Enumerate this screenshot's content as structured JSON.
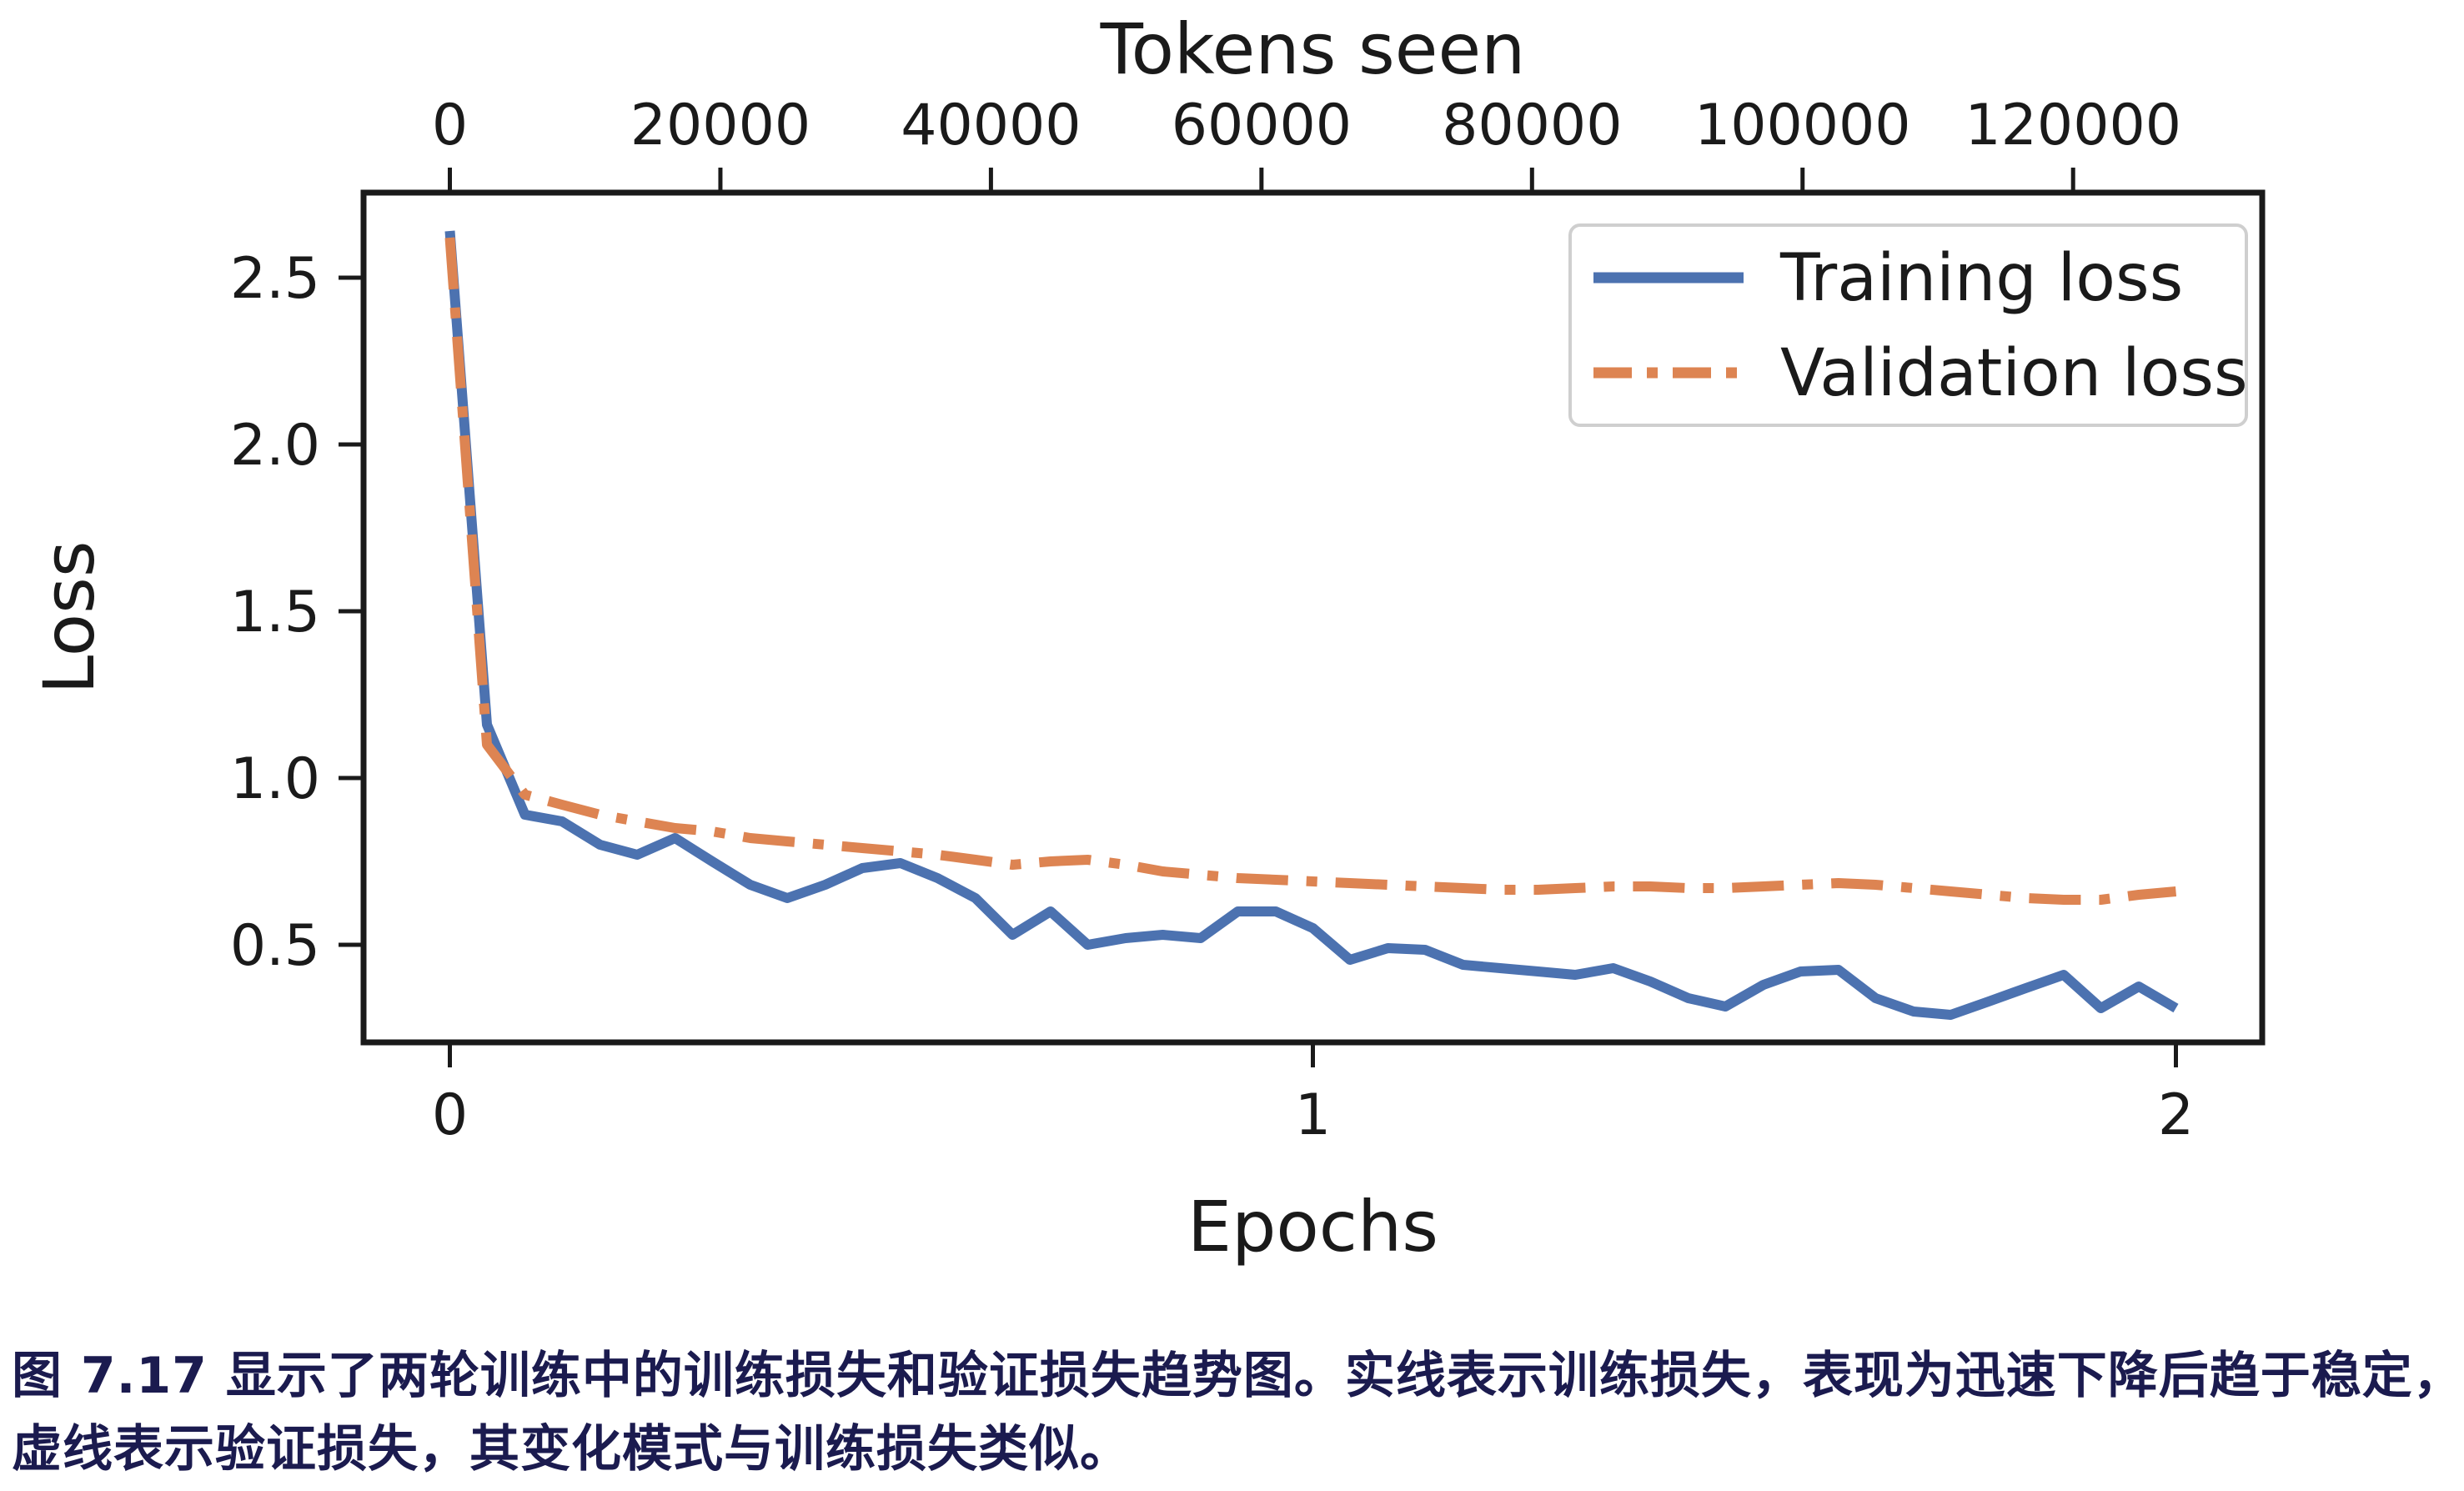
{
  "figure": {
    "caption_line1": "图 7.17 显示了两轮训练中的训练损失和验证损失趋势图。实线表示训练损失，表现为迅速下降后趋于稳定，",
    "caption_line2": "虚线表示验证损失，其变化模式与训练损失类似。",
    "caption_color": "#1b1b4f"
  },
  "chart_data": {
    "type": "line",
    "title": "",
    "top_xlabel": "Tokens seen",
    "bottom_xlabel": "Epochs",
    "ylabel": "Loss",
    "grid": false,
    "legend_position": "upper right",
    "bottom_x_axis": {
      "ticks": [
        0,
        1,
        2
      ],
      "range": [
        -0.1,
        2.1
      ]
    },
    "top_x_axis": {
      "ticks": [
        0,
        20000,
        40000,
        60000,
        80000,
        100000,
        120000
      ],
      "tokens_per_epoch": 63800
    },
    "y_axis": {
      "ticks": [
        0.5,
        1.0,
        1.5,
        2.0,
        2.5
      ],
      "range": [
        0.2075,
        2.755
      ]
    },
    "legend": [
      {
        "label": "Training loss",
        "color": "#4C72B0",
        "style": "solid"
      },
      {
        "label": "Validation loss",
        "color": "#DD8452",
        "style": "dashdot"
      }
    ],
    "series": [
      {
        "name": "Training loss",
        "color": "#4C72B0",
        "style": "solid",
        "x_epochs": [
          0.0,
          0.043,
          0.087,
          0.13,
          0.174,
          0.217,
          0.261,
          0.304,
          0.348,
          0.391,
          0.435,
          0.478,
          0.522,
          0.565,
          0.609,
          0.652,
          0.696,
          0.739,
          0.783,
          0.826,
          0.87,
          0.913,
          0.957,
          1.0,
          1.043,
          1.087,
          1.13,
          1.174,
          1.217,
          1.261,
          1.304,
          1.348,
          1.391,
          1.435,
          1.478,
          1.522,
          1.565,
          1.609,
          1.652,
          1.696,
          1.739,
          1.783,
          1.826,
          1.87,
          1.913,
          1.957,
          2.0
        ],
        "values": [
          2.64,
          1.16,
          0.89,
          0.87,
          0.8,
          0.77,
          0.82,
          0.75,
          0.68,
          0.64,
          0.68,
          0.73,
          0.745,
          0.7,
          0.64,
          0.53,
          0.6,
          0.5,
          0.52,
          0.53,
          0.52,
          0.6,
          0.6,
          0.55,
          0.455,
          0.49,
          0.485,
          0.44,
          0.43,
          0.42,
          0.41,
          0.43,
          0.39,
          0.34,
          0.315,
          0.38,
          0.42,
          0.425,
          0.34,
          0.3,
          0.29,
          0.33,
          0.37,
          0.41,
          0.31,
          0.375,
          0.31
        ]
      },
      {
        "name": "Validation loss",
        "color": "#DD8452",
        "style": "dashdot",
        "x_epochs": [
          0.0,
          0.043,
          0.087,
          0.13,
          0.174,
          0.217,
          0.261,
          0.304,
          0.348,
          0.391,
          0.435,
          0.478,
          0.522,
          0.565,
          0.609,
          0.652,
          0.696,
          0.739,
          0.783,
          0.826,
          0.87,
          0.913,
          0.957,
          1.0,
          1.043,
          1.087,
          1.13,
          1.174,
          1.217,
          1.261,
          1.304,
          1.348,
          1.391,
          1.435,
          1.478,
          1.522,
          1.565,
          1.609,
          1.652,
          1.696,
          1.739,
          1.783,
          1.826,
          1.87,
          1.913,
          1.957,
          2.0
        ],
        "values": [
          2.62,
          1.1,
          0.95,
          0.92,
          0.89,
          0.87,
          0.85,
          0.84,
          0.82,
          0.81,
          0.8,
          0.79,
          0.78,
          0.77,
          0.755,
          0.74,
          0.75,
          0.755,
          0.74,
          0.72,
          0.71,
          0.7,
          0.695,
          0.69,
          0.685,
          0.68,
          0.675,
          0.67,
          0.665,
          0.665,
          0.67,
          0.675,
          0.675,
          0.67,
          0.67,
          0.675,
          0.68,
          0.685,
          0.68,
          0.67,
          0.66,
          0.65,
          0.64,
          0.635,
          0.635,
          0.65,
          0.66
        ]
      }
    ]
  }
}
